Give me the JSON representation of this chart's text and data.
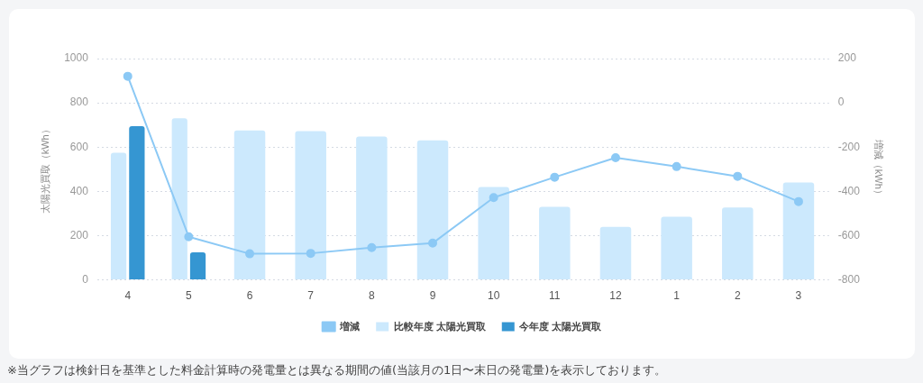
{
  "chart_data": {
    "type": "bar",
    "ylabel": "太陽光買取（kWh）",
    "y2label": "増減（kWh）",
    "categories": [
      "4",
      "5",
      "6",
      "7",
      "8",
      "9",
      "10",
      "11",
      "12",
      "1",
      "2",
      "3"
    ],
    "series": [
      {
        "name": "比較年度 太陽光買取",
        "color": "#cce9fd",
        "values": [
          575,
          730,
          675,
          672,
          648,
          630,
          420,
          330,
          240,
          285,
          327,
          440
        ]
      },
      {
        "name": "今年度 太陽光買取",
        "color": "#3596d2",
        "values": [
          695,
          125,
          null,
          null,
          null,
          null,
          null,
          null,
          null,
          null,
          null,
          null
        ]
      },
      {
        "name": "増減",
        "type": "line",
        "axis": "y2",
        "color": "#8cc9f5",
        "marker": "circle",
        "values": [
          120,
          -605,
          -682,
          -680,
          -654,
          -634,
          -428,
          -336,
          -248,
          -288,
          -332,
          -446
        ]
      }
    ],
    "ylim": [
      0,
      1000
    ],
    "yticks": [
      0,
      200,
      400,
      600,
      800,
      1000
    ],
    "y2lim": [
      -800,
      200
    ],
    "y2ticks": [
      -800,
      -600,
      -400,
      -200,
      0,
      200
    ],
    "grid": "y",
    "legend": "bottom",
    "annotations": [
      "※当グラフは検針日を基準とした料金計算時の発電量とは異なる期間の値(当該月の1日〜末日の発電量)を表示しております。"
    ]
  }
}
